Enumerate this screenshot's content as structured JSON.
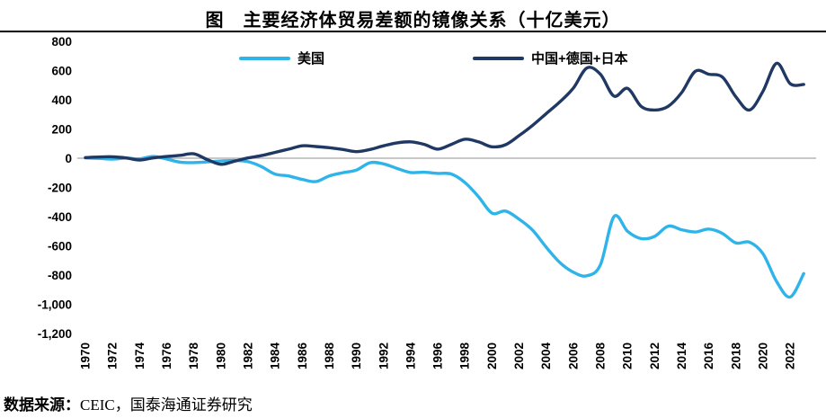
{
  "header": {
    "title": "图　主要经济体贸易差额的镜像关系（十亿美元）"
  },
  "footer": {
    "source_prefix": "数据来源：",
    "source_text": "CEIC，国泰海通证券研究"
  },
  "chart_data": {
    "type": "line",
    "title": "图　主要经济体贸易差额的镜像关系（十亿美元）",
    "unit": "十亿美元",
    "xlabel": "",
    "ylabel": "",
    "ylim": [
      -1200,
      800
    ],
    "grid": "zero-line-only",
    "legend_position": "top-inside",
    "colors": {
      "zero_line": "#A6A6A6",
      "divider": "#000000"
    },
    "y_ticks": [
      {
        "value": 800,
        "label": "800"
      },
      {
        "value": 600,
        "label": "600"
      },
      {
        "value": 400,
        "label": "400"
      },
      {
        "value": 200,
        "label": "200"
      },
      {
        "value": 0,
        "label": "0"
      },
      {
        "value": -200,
        "label": "-200"
      },
      {
        "value": -400,
        "label": "-400"
      },
      {
        "value": -600,
        "label": "-600"
      },
      {
        "value": -800,
        "label": "-800"
      },
      {
        "value": -1000,
        "label": "-1,000"
      },
      {
        "value": -1200,
        "label": "-1,200"
      }
    ],
    "x_tick_labels": [
      "1970",
      "1972",
      "1974",
      "1976",
      "1978",
      "1980",
      "1982",
      "1984",
      "1986",
      "1988",
      "1990",
      "1992",
      "1994",
      "1996",
      "1998",
      "2000",
      "2002",
      "2004",
      "2006",
      "2008",
      "2010",
      "2012",
      "2014",
      "2016",
      "2018",
      "2020",
      "2022"
    ],
    "x": [
      1970,
      1971,
      1972,
      1973,
      1974,
      1975,
      1976,
      1977,
      1978,
      1979,
      1980,
      1981,
      1982,
      1983,
      1984,
      1985,
      1986,
      1987,
      1988,
      1989,
      1990,
      1991,
      1992,
      1993,
      1994,
      1995,
      1996,
      1997,
      1998,
      1999,
      2000,
      2001,
      2002,
      2003,
      2004,
      2005,
      2006,
      2007,
      2008,
      2009,
      2010,
      2011,
      2012,
      2013,
      2014,
      2015,
      2016,
      2017,
      2018,
      2019,
      2020,
      2021,
      2022,
      2023
    ],
    "series": [
      {
        "id": "us",
        "name": "美国",
        "color": "#2FB4E9",
        "values": [
          2,
          -1,
          -6,
          1,
          -4,
          12,
          -6,
          -27,
          -30,
          -25,
          -19,
          -16,
          -24,
          -58,
          -109,
          -122,
          -145,
          -160,
          -121,
          -99,
          -81,
          -31,
          -39,
          -70,
          -98,
          -96,
          -104,
          -108,
          -166,
          -263,
          -376,
          -362,
          -418,
          -493,
          -609,
          -714,
          -780,
          -805,
          -730,
          -400,
          -500,
          -550,
          -535,
          -465,
          -490,
          -505,
          -485,
          -515,
          -580,
          -575,
          -655,
          -845,
          -950,
          -790
        ]
      },
      {
        "id": "cgj",
        "name": "中国+德国+日本",
        "color": "#1F3864",
        "values": [
          4,
          8,
          10,
          2,
          -12,
          2,
          12,
          20,
          30,
          -10,
          -42,
          -20,
          2,
          18,
          40,
          62,
          85,
          80,
          72,
          60,
          45,
          60,
          85,
          105,
          112,
          95,
          62,
          95,
          130,
          112,
          78,
          92,
          155,
          225,
          305,
          385,
          480,
          618,
          575,
          425,
          478,
          355,
          330,
          355,
          450,
          595,
          575,
          555,
          420,
          330,
          460,
          650,
          510,
          505
        ]
      }
    ]
  }
}
